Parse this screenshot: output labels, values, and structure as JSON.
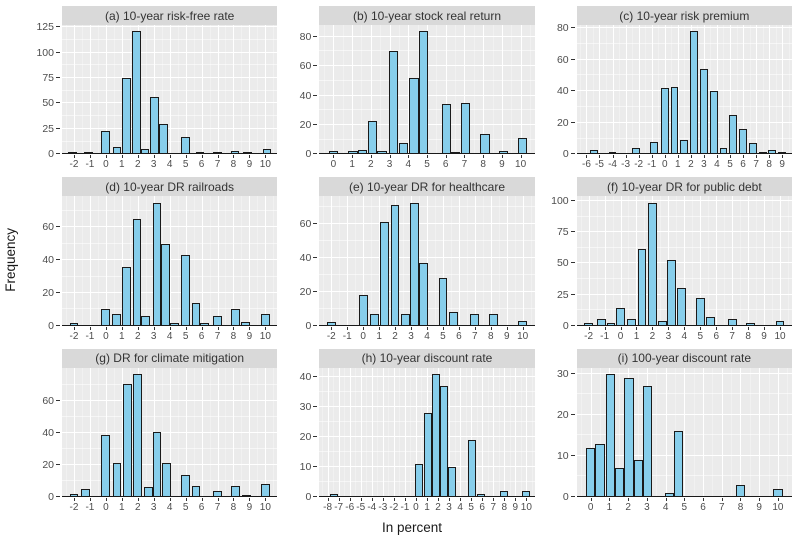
{
  "figure": {
    "ylabel": "Frequency",
    "xlabel": "In percent"
  },
  "colors": {
    "bar_fill": "#87CEEB",
    "bar_stroke": "#1A1A1A",
    "panel_bg": "#EBEBEB",
    "strip_bg": "#D9D9D9",
    "grid_major": "#FFFFFF",
    "axis_text": "#4D4D4D",
    "strip_text": "#333333"
  },
  "chart_data": [
    {
      "id": "a",
      "type": "bar",
      "subtype": "histogram",
      "title": "(a) 10-year risk-free rate",
      "xlabel": "In percent",
      "ylabel": "Frequency",
      "grid": true,
      "legend": false,
      "x_ticks": [
        -2,
        -1,
        0,
        1,
        2,
        3,
        4,
        5,
        6,
        7,
        8,
        9,
        10
      ],
      "x_range": [
        -2.75,
        10.75
      ],
      "y_ticks": [
        0,
        25,
        50,
        75,
        100,
        125
      ],
      "y_max": 127,
      "bar_width": 0.55,
      "bars": [
        [
          -2.1,
          1
        ],
        [
          -1.1,
          2
        ],
        [
          0,
          23
        ],
        [
          0.7,
          7
        ],
        [
          1.3,
          75
        ],
        [
          1.9,
          121
        ],
        [
          2.45,
          5
        ],
        [
          3.05,
          56
        ],
        [
          3.6,
          30
        ],
        [
          5,
          17
        ],
        [
          5.9,
          1
        ],
        [
          7,
          1
        ],
        [
          8.1,
          3
        ],
        [
          8.9,
          1
        ],
        [
          10.1,
          5
        ]
      ]
    },
    {
      "id": "b",
      "type": "bar",
      "subtype": "histogram",
      "title": "(b) 10-year stock real return",
      "xlabel": "In percent",
      "ylabel": "Frequency",
      "grid": true,
      "legend": false,
      "x_ticks": [
        0,
        1,
        2,
        3,
        4,
        5,
        6,
        7,
        8,
        9,
        10
      ],
      "x_range": [
        -0.75,
        10.75
      ],
      "y_ticks": [
        0,
        20,
        40,
        60,
        80
      ],
      "y_max": 88,
      "bar_width": 0.5,
      "bars": [
        [
          0,
          2
        ],
        [
          1.05,
          2
        ],
        [
          1.55,
          3
        ],
        [
          2.1,
          23
        ],
        [
          2.6,
          2
        ],
        [
          3.2,
          70
        ],
        [
          3.75,
          8
        ],
        [
          4.3,
          52
        ],
        [
          4.8,
          84
        ],
        [
          6.05,
          34
        ],
        [
          6.5,
          1
        ],
        [
          7.05,
          35
        ],
        [
          8.1,
          14
        ],
        [
          9.1,
          2
        ],
        [
          10.1,
          11
        ]
      ]
    },
    {
      "id": "c",
      "type": "bar",
      "subtype": "histogram",
      "title": "(c) 10-year risk premium",
      "xlabel": "In percent",
      "ylabel": "Frequency",
      "grid": true,
      "legend": false,
      "x_ticks": [
        -6,
        -5,
        -4,
        -3,
        -2,
        -1,
        0,
        1,
        2,
        3,
        4,
        5,
        6,
        7,
        8,
        9
      ],
      "x_range": [
        -6.75,
        9.75
      ],
      "y_ticks": [
        0,
        20,
        40,
        60,
        80
      ],
      "y_max": 82,
      "bar_width": 0.6,
      "bars": [
        [
          -5.4,
          3
        ],
        [
          -4,
          1
        ],
        [
          -2.2,
          4
        ],
        [
          -0.8,
          8
        ],
        [
          0,
          42
        ],
        [
          0.75,
          43
        ],
        [
          1.5,
          9
        ],
        [
          2.25,
          78
        ],
        [
          3,
          54
        ],
        [
          3.75,
          40
        ],
        [
          4.5,
          4
        ],
        [
          5.25,
          25
        ],
        [
          6,
          16
        ],
        [
          6.75,
          7
        ],
        [
          7.5,
          1
        ],
        [
          8.25,
          3
        ],
        [
          9,
          1
        ]
      ]
    },
    {
      "id": "d",
      "type": "bar",
      "subtype": "histogram",
      "title": "(d) 10-year DR railroads",
      "xlabel": "In percent",
      "ylabel": "Frequency",
      "grid": true,
      "legend": false,
      "x_ticks": [
        -2,
        -1,
        0,
        1,
        2,
        3,
        4,
        5,
        6,
        7,
        8,
        9,
        10
      ],
      "x_range": [
        -2.75,
        10.75
      ],
      "y_ticks": [
        0,
        20,
        40,
        60
      ],
      "y_max": 79,
      "bar_width": 0.55,
      "bars": [
        [
          -2,
          1
        ],
        [
          0,
          10
        ],
        [
          0.65,
          7
        ],
        [
          1.3,
          36
        ],
        [
          1.95,
          65
        ],
        [
          2.5,
          6
        ],
        [
          3.2,
          75
        ],
        [
          3.75,
          50
        ],
        [
          4.3,
          1
        ],
        [
          5,
          43
        ],
        [
          5.65,
          14
        ],
        [
          6.2,
          1
        ],
        [
          7,
          6
        ],
        [
          8.15,
          10
        ],
        [
          8.75,
          2
        ],
        [
          10,
          7
        ]
      ]
    },
    {
      "id": "e",
      "type": "bar",
      "subtype": "histogram",
      "title": "(e) 10-year DR for healthcare",
      "xlabel": "In percent",
      "ylabel": "Frequency",
      "grid": true,
      "legend": false,
      "x_ticks": [
        -2,
        -1,
        0,
        1,
        2,
        3,
        4,
        5,
        6,
        7,
        8,
        9,
        10
      ],
      "x_range": [
        -2.75,
        10.75
      ],
      "y_ticks": [
        0,
        20,
        40,
        60
      ],
      "y_max": 76,
      "bar_width": 0.55,
      "bars": [
        [
          -2,
          2
        ],
        [
          0,
          18
        ],
        [
          0.7,
          7
        ],
        [
          1.35,
          61
        ],
        [
          2,
          71
        ],
        [
          2.65,
          7
        ],
        [
          3.2,
          72
        ],
        [
          3.8,
          37
        ],
        [
          5,
          28
        ],
        [
          5.65,
          8
        ],
        [
          7,
          7
        ],
        [
          8.15,
          7
        ],
        [
          10,
          3
        ]
      ]
    },
    {
      "id": "f",
      "type": "bar",
      "subtype": "histogram",
      "title": "(f) 10-year DR for public debt",
      "xlabel": "In percent",
      "ylabel": "Frequency",
      "grid": true,
      "legend": false,
      "x_ticks": [
        -2,
        -1,
        0,
        1,
        2,
        3,
        4,
        5,
        6,
        7,
        8,
        9,
        10
      ],
      "x_range": [
        -2.75,
        10.75
      ],
      "y_ticks": [
        0,
        25,
        50,
        75,
        100
      ],
      "y_max": 104,
      "bar_width": 0.55,
      "bars": [
        [
          -2,
          1
        ],
        [
          -1.2,
          5
        ],
        [
          -0.6,
          1
        ],
        [
          0,
          14
        ],
        [
          0.7,
          5
        ],
        [
          1.35,
          62
        ],
        [
          2,
          99
        ],
        [
          2.65,
          4
        ],
        [
          3.2,
          53
        ],
        [
          3.8,
          30
        ],
        [
          5,
          22
        ],
        [
          5.65,
          7
        ],
        [
          7,
          5
        ],
        [
          8.15,
          2
        ],
        [
          10,
          4
        ]
      ]
    },
    {
      "id": "g",
      "type": "bar",
      "subtype": "histogram",
      "title": "(g) DR for climate mitigation",
      "xlabel": "In percent",
      "ylabel": "Frequency",
      "grid": true,
      "legend": false,
      "x_ticks": [
        -2,
        -1,
        0,
        1,
        2,
        3,
        4,
        5,
        6,
        7,
        8,
        9,
        10
      ],
      "x_range": [
        -2.75,
        10.75
      ],
      "y_ticks": [
        0,
        20,
        40,
        60
      ],
      "y_max": 81,
      "bar_width": 0.55,
      "bars": [
        [
          -2,
          2
        ],
        [
          -1.3,
          5
        ],
        [
          0,
          39
        ],
        [
          0.7,
          21
        ],
        [
          1.35,
          71
        ],
        [
          2,
          77
        ],
        [
          2.65,
          6
        ],
        [
          3.2,
          41
        ],
        [
          3.8,
          21
        ],
        [
          5,
          14
        ],
        [
          5.65,
          7
        ],
        [
          7,
          4
        ],
        [
          8.15,
          7
        ],
        [
          8.8,
          1
        ],
        [
          10,
          8
        ]
      ]
    },
    {
      "id": "h",
      "type": "bar",
      "subtype": "histogram",
      "title": "(h) 10-year discount rate",
      "xlabel": "In percent",
      "ylabel": "Frequency",
      "grid": true,
      "legend": false,
      "x_ticks": [
        -8,
        -7,
        -6,
        -5,
        -4,
        -3,
        -2,
        -1,
        0,
        1,
        2,
        3,
        4,
        5,
        6,
        7,
        8,
        9,
        10
      ],
      "x_range": [
        -8.75,
        10.75
      ],
      "y_ticks": [
        0,
        10,
        20,
        30,
        40
      ],
      "y_max": 43,
      "bar_width": 0.72,
      "bars": [
        [
          -7.4,
          1
        ],
        [
          0.3,
          11
        ],
        [
          1.05,
          28
        ],
        [
          1.8,
          41
        ],
        [
          2.55,
          37
        ],
        [
          3.3,
          10
        ],
        [
          5.1,
          19
        ],
        [
          5.85,
          1
        ],
        [
          8,
          2
        ],
        [
          10,
          2
        ]
      ]
    },
    {
      "id": "i",
      "type": "bar",
      "subtype": "histogram",
      "title": "(i) 100-year discount rate",
      "xlabel": "In percent",
      "ylabel": "Frequency",
      "grid": true,
      "legend": false,
      "x_ticks": [
        0,
        1,
        2,
        3,
        4,
        5,
        6,
        7,
        8,
        9,
        10
      ],
      "x_range": [
        -0.75,
        10.75
      ],
      "y_ticks": [
        0,
        10,
        20,
        30
      ],
      "y_max": 31.5,
      "bar_width": 0.5,
      "bars": [
        [
          0,
          12
        ],
        [
          0.5,
          13
        ],
        [
          1.05,
          30
        ],
        [
          1.55,
          7
        ],
        [
          2.05,
          29
        ],
        [
          2.55,
          9
        ],
        [
          3.05,
          27
        ],
        [
          4.2,
          1
        ],
        [
          4.7,
          16
        ],
        [
          8,
          3
        ],
        [
          10,
          2
        ]
      ]
    }
  ]
}
